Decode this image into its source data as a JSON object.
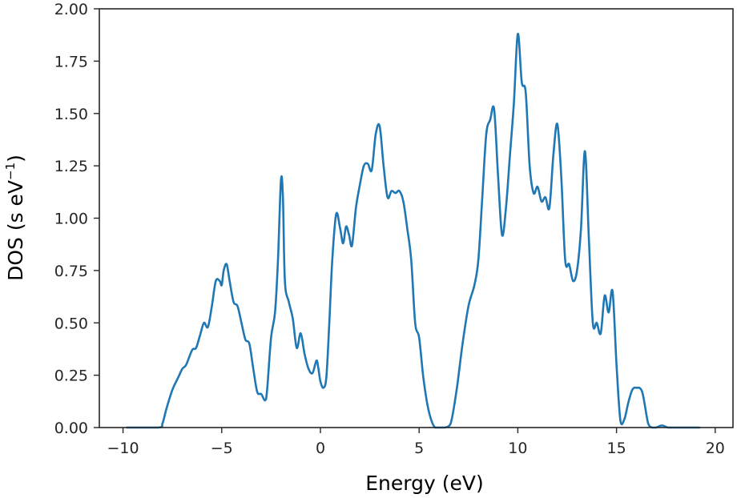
{
  "chart_data": {
    "type": "line",
    "xlabel": "Energy (eV)",
    "ylabel": {
      "main": "DOS (s eV",
      "sup": "−1",
      "close": ")"
    },
    "xlim": [
      -11.2,
      20.9
    ],
    "ylim": [
      0,
      2
    ],
    "xticks": [
      -10,
      -5,
      0,
      5,
      10,
      15,
      20
    ],
    "xtick_labels": [
      "−10",
      "−5",
      "0",
      "5",
      "10",
      "15",
      "20"
    ],
    "yticks": [
      0,
      0.25,
      0.5,
      0.75,
      1.0,
      1.25,
      1.5,
      1.75,
      2.0
    ],
    "ytick_labels": [
      "0.00",
      "0.25",
      "0.50",
      "0.75",
      "1.00",
      "1.25",
      "1.50",
      "1.75",
      "2.00"
    ],
    "grid": false,
    "series": [
      {
        "color": "#1f77b4",
        "x": [
          -9.8,
          -8.2,
          -8.0,
          -7.8,
          -7.5,
          -7.2,
          -7.0,
          -6.8,
          -6.5,
          -6.3,
          -6.1,
          -5.9,
          -5.7,
          -5.5,
          -5.3,
          -5.1,
          -5.0,
          -4.9,
          -4.75,
          -4.6,
          -4.4,
          -4.2,
          -4.0,
          -3.8,
          -3.6,
          -3.4,
          -3.2,
          -3.0,
          -2.8,
          -2.7,
          -2.5,
          -2.3,
          -2.15,
          -2.0,
          -1.9,
          -1.8,
          -1.6,
          -1.4,
          -1.2,
          -1.0,
          -0.8,
          -0.6,
          -0.4,
          -0.2,
          -0.1,
          0.0,
          0.15,
          0.3,
          0.45,
          0.6,
          0.8,
          1.0,
          1.15,
          1.3,
          1.45,
          1.6,
          1.8,
          2.0,
          2.2,
          2.4,
          2.6,
          2.8,
          3.0,
          3.2,
          3.4,
          3.6,
          3.8,
          4.0,
          4.2,
          4.4,
          4.6,
          4.8,
          5.0,
          5.2,
          5.4,
          5.6,
          5.8,
          6.0,
          6.3,
          6.6,
          6.9,
          7.2,
          7.5,
          7.8,
          8.0,
          8.2,
          8.4,
          8.6,
          8.8,
          9.0,
          9.2,
          9.4,
          9.6,
          9.8,
          10.0,
          10.2,
          10.4,
          10.6,
          10.8,
          11.0,
          11.2,
          11.4,
          11.6,
          11.8,
          12.0,
          12.2,
          12.4,
          12.6,
          12.8,
          13.0,
          13.2,
          13.4,
          13.6,
          13.8,
          14.0,
          14.2,
          14.4,
          14.6,
          14.8,
          15.0,
          15.2,
          15.4,
          15.6,
          15.8,
          16.0,
          16.3,
          16.6,
          16.8,
          17.0,
          17.3,
          17.6,
          17.9,
          19.2
        ],
        "y": [
          0.0,
          0.0,
          0.02,
          0.09,
          0.18,
          0.24,
          0.28,
          0.3,
          0.37,
          0.38,
          0.44,
          0.5,
          0.48,
          0.58,
          0.7,
          0.7,
          0.68,
          0.75,
          0.78,
          0.7,
          0.6,
          0.58,
          0.5,
          0.42,
          0.4,
          0.28,
          0.17,
          0.16,
          0.13,
          0.18,
          0.43,
          0.55,
          0.8,
          1.18,
          1.1,
          0.7,
          0.6,
          0.52,
          0.38,
          0.45,
          0.35,
          0.28,
          0.26,
          0.32,
          0.28,
          0.22,
          0.19,
          0.24,
          0.5,
          0.8,
          1.02,
          0.95,
          0.88,
          0.96,
          0.92,
          0.87,
          1.05,
          1.16,
          1.25,
          1.26,
          1.23,
          1.4,
          1.44,
          1.25,
          1.1,
          1.13,
          1.12,
          1.13,
          1.08,
          0.95,
          0.8,
          0.5,
          0.43,
          0.25,
          0.12,
          0.04,
          0.0,
          0.0,
          0.0,
          0.02,
          0.18,
          0.4,
          0.58,
          0.68,
          0.8,
          1.1,
          1.4,
          1.47,
          1.52,
          1.2,
          0.92,
          1.05,
          1.3,
          1.55,
          1.88,
          1.65,
          1.6,
          1.25,
          1.12,
          1.15,
          1.08,
          1.1,
          1.05,
          1.3,
          1.45,
          1.2,
          0.8,
          0.78,
          0.7,
          0.75,
          0.95,
          1.32,
          0.9,
          0.5,
          0.5,
          0.45,
          0.63,
          0.55,
          0.65,
          0.3,
          0.03,
          0.04,
          0.12,
          0.18,
          0.19,
          0.17,
          0.02,
          0.0,
          0.0,
          0.01,
          0.0,
          0.0,
          0.0
        ]
      }
    ]
  }
}
